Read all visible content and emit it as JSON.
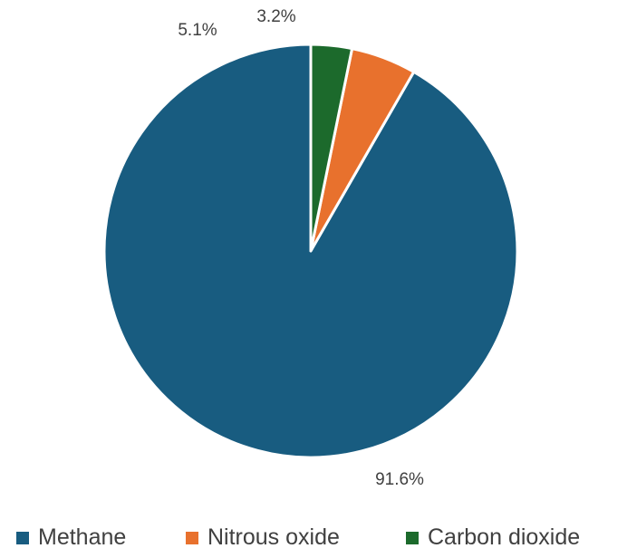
{
  "chart_data": {
    "type": "pie",
    "categories": [
      "Methane",
      "Nitrous oxide",
      "Carbon dioxide"
    ],
    "values": [
      91.6,
      5.1,
      3.2
    ],
    "data_labels": [
      "91.6%",
      "5.1%",
      "3.2%"
    ],
    "colors": [
      "#185c80",
      "#e8712d",
      "#1c6a2c"
    ],
    "start_angle_deg": 0,
    "direction": "counterclockwise",
    "legend_position": "bottom",
    "title": ""
  }
}
